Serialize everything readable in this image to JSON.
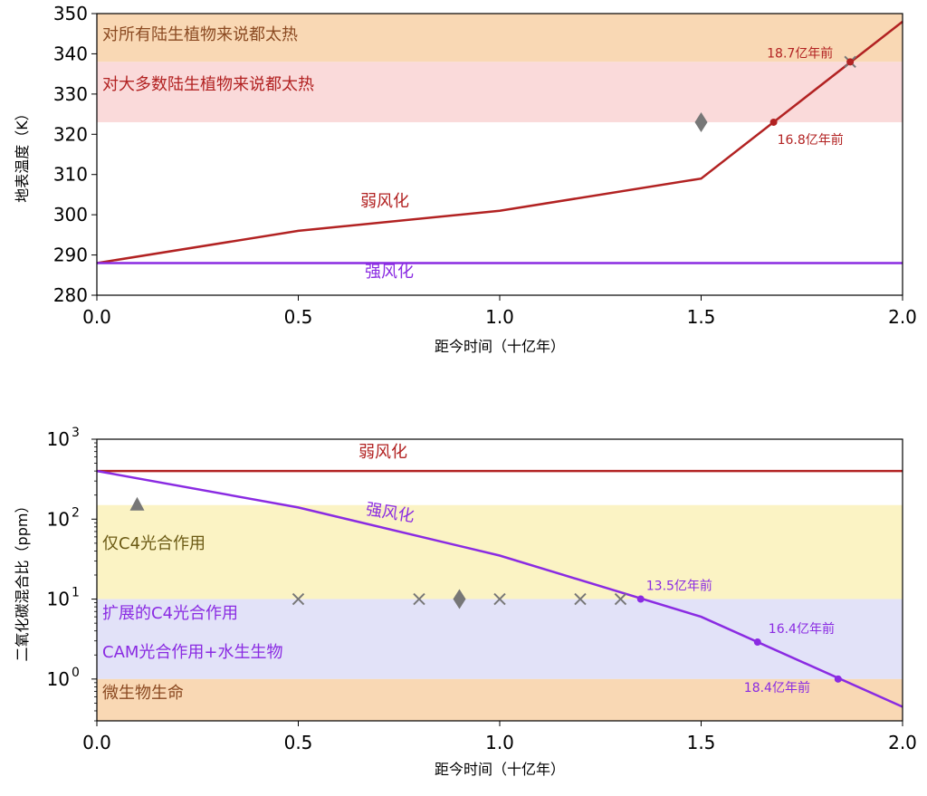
{
  "chart_data": [
    {
      "type": "line",
      "xlabel": "距今时间（十亿年）",
      "ylabel": "地表温度（K）",
      "xlim": [
        0.0,
        2.0
      ],
      "ylim": [
        280,
        350
      ],
      "x_ticks": [
        "0.0",
        "0.5",
        "1.0",
        "1.5",
        "2.0"
      ],
      "y_ticks": [
        "280",
        "290",
        "300",
        "310",
        "320",
        "330",
        "340",
        "350"
      ],
      "bands": [
        {
          "label": "对所有陆生植物来说都太热",
          "range": [
            338,
            350
          ],
          "color": "#f9d8b4"
        },
        {
          "label": "对大多数陆生植物来说都太热",
          "range": [
            323,
            338
          ],
          "color": "#fadada"
        }
      ],
      "series": [
        {
          "name": "弱风化",
          "color": "#b22222",
          "x": [
            0.0,
            0.5,
            1.0,
            1.5,
            2.0
          ],
          "y": [
            288,
            296,
            301,
            309,
            348
          ]
        },
        {
          "name": "强风化",
          "color": "#8a2be2",
          "x": [
            0.0,
            2.0
          ],
          "y": [
            288,
            288
          ]
        }
      ],
      "markers": [
        {
          "shape": "diamond",
          "x": 1.5,
          "y": 323,
          "color": "#777777"
        },
        {
          "shape": "x",
          "x": 1.87,
          "y": 338,
          "color": "#777777"
        }
      ],
      "annotations": [
        {
          "text": "18.7亿年前",
          "x": 1.87,
          "y": 338,
          "color": "#b22222"
        },
        {
          "text": "16.8亿年前",
          "x": 1.68,
          "y": 323,
          "color": "#b22222"
        }
      ]
    },
    {
      "type": "line",
      "xlabel": "距今时间（十亿年）",
      "ylabel": "二氧化碳混合比（ppm）",
      "yscale": "log",
      "xlim": [
        0.0,
        2.0
      ],
      "ylim": [
        0.3,
        1000
      ],
      "x_ticks": [
        "0.0",
        "0.5",
        "1.0",
        "1.5",
        "2.0"
      ],
      "y_ticks": [
        {
          "value": 1,
          "base": "10",
          "exp": "0"
        },
        {
          "value": 10,
          "base": "10",
          "exp": "1"
        },
        {
          "value": 100,
          "base": "10",
          "exp": "2"
        },
        {
          "value": 1000,
          "base": "10",
          "exp": "3"
        }
      ],
      "bands": [
        {
          "label": "仅C4光合作用",
          "range": [
            10,
            150
          ],
          "color": "#fbf3c4"
        },
        {
          "label": "扩展的C4光合作用",
          "range": [
            1,
            10
          ],
          "color": "#e2e2f8"
        },
        {
          "label": "CAM光合作用+水生生物",
          "range": [
            1,
            10
          ],
          "color": "#e2e2f8"
        },
        {
          "label": "微生物生命",
          "range": [
            0.3,
            1
          ],
          "color": "#f9d8b4"
        }
      ],
      "series": [
        {
          "name": "弱风化",
          "color": "#b22222",
          "x": [
            0.0,
            2.0
          ],
          "y": [
            400,
            400
          ]
        },
        {
          "name": "强风化",
          "color": "#8a2be2",
          "x": [
            0.0,
            0.5,
            1.0,
            1.5,
            2.0
          ],
          "y": [
            400,
            140,
            35,
            6,
            0.45
          ]
        }
      ],
      "markers": [
        {
          "shape": "triangle",
          "x": 0.1,
          "y": 150,
          "color": "#777777"
        },
        {
          "shape": "diamond",
          "x": 0.9,
          "y": 10,
          "color": "#777777"
        },
        {
          "shape": "x",
          "x": 0.5,
          "y": 10,
          "color": "#777777"
        },
        {
          "shape": "x",
          "x": 0.8,
          "y": 10,
          "color": "#777777"
        },
        {
          "shape": "x",
          "x": 1.0,
          "y": 10,
          "color": "#777777"
        },
        {
          "shape": "x",
          "x": 1.2,
          "y": 10,
          "color": "#777777"
        },
        {
          "shape": "x",
          "x": 1.3,
          "y": 10,
          "color": "#777777"
        }
      ],
      "annotations": [
        {
          "text": "13.5亿年前",
          "x": 1.35,
          "y": 10,
          "color": "#8a2be2"
        },
        {
          "text": "16.4亿年前",
          "x": 1.64,
          "y": 2.9,
          "color": "#8a2be2"
        },
        {
          "text": "18.4亿年前",
          "x": 1.84,
          "y": 1,
          "color": "#8a2be2"
        }
      ]
    }
  ]
}
